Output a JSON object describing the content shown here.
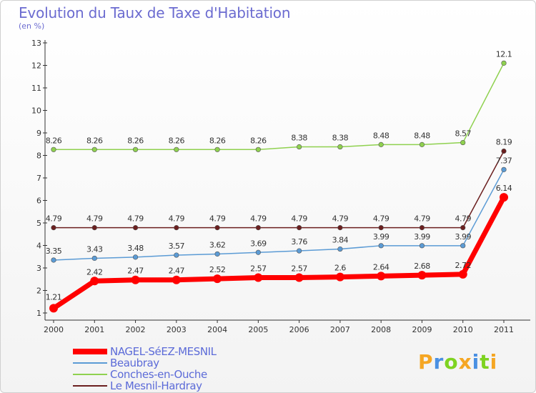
{
  "header": {
    "title": "Evolution du Taux de Taxe d'Habitation",
    "subtitle": "(en %)"
  },
  "brand": {
    "text": "Proxiti",
    "letter_colors": [
      "#f5a623",
      "#4a90e2",
      "#7ed321",
      "#f5a623",
      "#4a90e2",
      "#7ed321",
      "#f5a623"
    ]
  },
  "chart_data": {
    "type": "line",
    "title": "Evolution du Taux de Taxe d'Habitation",
    "ylabel": "(en %)",
    "xlabel": "",
    "x": [
      "2000",
      "2001",
      "2002",
      "2003",
      "2004",
      "2005",
      "2006",
      "2007",
      "2008",
      "2009",
      "2010",
      "2011"
    ],
    "ylim": [
      1,
      13
    ],
    "yticks": [
      "1",
      "2",
      "3",
      "4",
      "5",
      "6",
      "7",
      "8",
      "9",
      "10",
      "11",
      "12",
      "13"
    ],
    "grid": false,
    "legend_position": "bottom-left",
    "series": [
      {
        "name": "NAGEL-SéEZ-MESNIL",
        "color": "#ff0000",
        "values": [
          1.21,
          2.42,
          2.47,
          2.47,
          2.52,
          2.57,
          2.57,
          2.6,
          2.64,
          2.68,
          2.72,
          6.14
        ],
        "labels": [
          "1.21",
          "2.42",
          "2.47",
          "2.47",
          "2.52",
          "2.57",
          "2.57",
          "2.6",
          "2.64",
          "2.68",
          "2.72",
          "6.14"
        ]
      },
      {
        "name": "Beaubray",
        "color": "#5b9bd5",
        "values": [
          3.35,
          3.43,
          3.48,
          3.57,
          3.62,
          3.69,
          3.76,
          3.84,
          3.99,
          3.99,
          3.99,
          7.37
        ],
        "labels": [
          "3.35",
          "3.43",
          "3.48",
          "3.57",
          "3.62",
          "3.69",
          "3.76",
          "3.84",
          "3.99",
          "3.99",
          "3.99",
          "7.37"
        ]
      },
      {
        "name": "Conches-en-Ouche",
        "color": "#8fd14f",
        "values": [
          8.26,
          8.26,
          8.26,
          8.26,
          8.26,
          8.26,
          8.38,
          8.38,
          8.48,
          8.48,
          8.57,
          12.1
        ],
        "labels": [
          "8.26",
          "8.26",
          "8.26",
          "8.26",
          "8.26",
          "8.26",
          "8.38",
          "8.38",
          "8.48",
          "8.48",
          "8.57",
          "12.1"
        ]
      },
      {
        "name": "Le Mesnil-Hardray",
        "color": "#6b1f1f",
        "values": [
          4.79,
          4.79,
          4.79,
          4.79,
          4.79,
          4.79,
          4.79,
          4.79,
          4.79,
          4.79,
          4.79,
          8.19
        ],
        "labels": [
          "4.79",
          "4.79",
          "4.79",
          "4.79",
          "4.79",
          "4.79",
          "4.79",
          "4.79",
          "4.79",
          "4.79",
          "4.79",
          "8.19"
        ]
      }
    ]
  }
}
